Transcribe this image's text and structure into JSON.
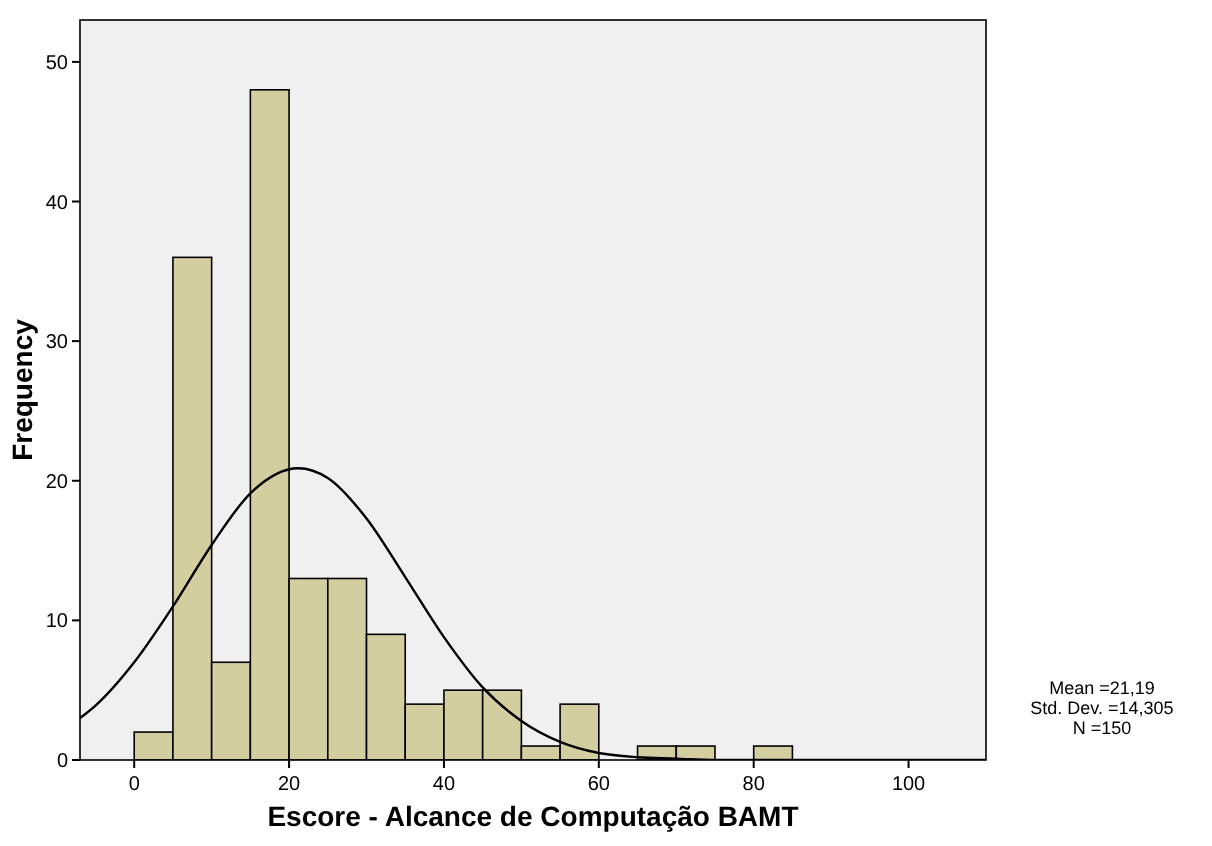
{
  "chart_data": {
    "type": "histogram",
    "xlabel": "Escore - Alcance de Computação BAMT",
    "ylabel": "Frequency",
    "xlim": [
      -7,
      110
    ],
    "xticks": [
      0,
      20,
      40,
      60,
      80,
      100
    ],
    "ylim": [
      0,
      53
    ],
    "yticks": [
      0,
      10,
      20,
      30,
      40,
      50
    ],
    "grid": false,
    "series": [
      {
        "color": "#d3cea0",
        "bins": [
          0,
          5,
          10,
          15,
          20,
          25,
          30,
          35,
          40,
          45,
          50,
          55,
          60,
          65,
          70,
          75,
          80,
          85
        ],
        "values": [
          2,
          36,
          7,
          48,
          13,
          13,
          9,
          4,
          5,
          5,
          1,
          4,
          0,
          1,
          1,
          0,
          1
        ]
      },
      {
        "type": "line",
        "color": "#000000",
        "x": [
          -7,
          -5,
          0,
          5,
          10,
          15,
          21.19,
          25,
          30,
          35,
          40,
          45,
          50,
          55,
          60,
          65,
          70,
          75,
          80,
          90,
          100,
          110
        ],
        "values": [
          3.0,
          3.9,
          7.0,
          11.0,
          15.4,
          19.1,
          20.9,
          20.2,
          17.3,
          13.1,
          8.8,
          5.2,
          2.8,
          1.3,
          0.5,
          0.2,
          0.1,
          0,
          0,
          0,
          0,
          0
        ]
      }
    ],
    "annotations": [
      "Mean =21,19",
      "Std. Dev. =14,305",
      "N =150"
    ]
  }
}
